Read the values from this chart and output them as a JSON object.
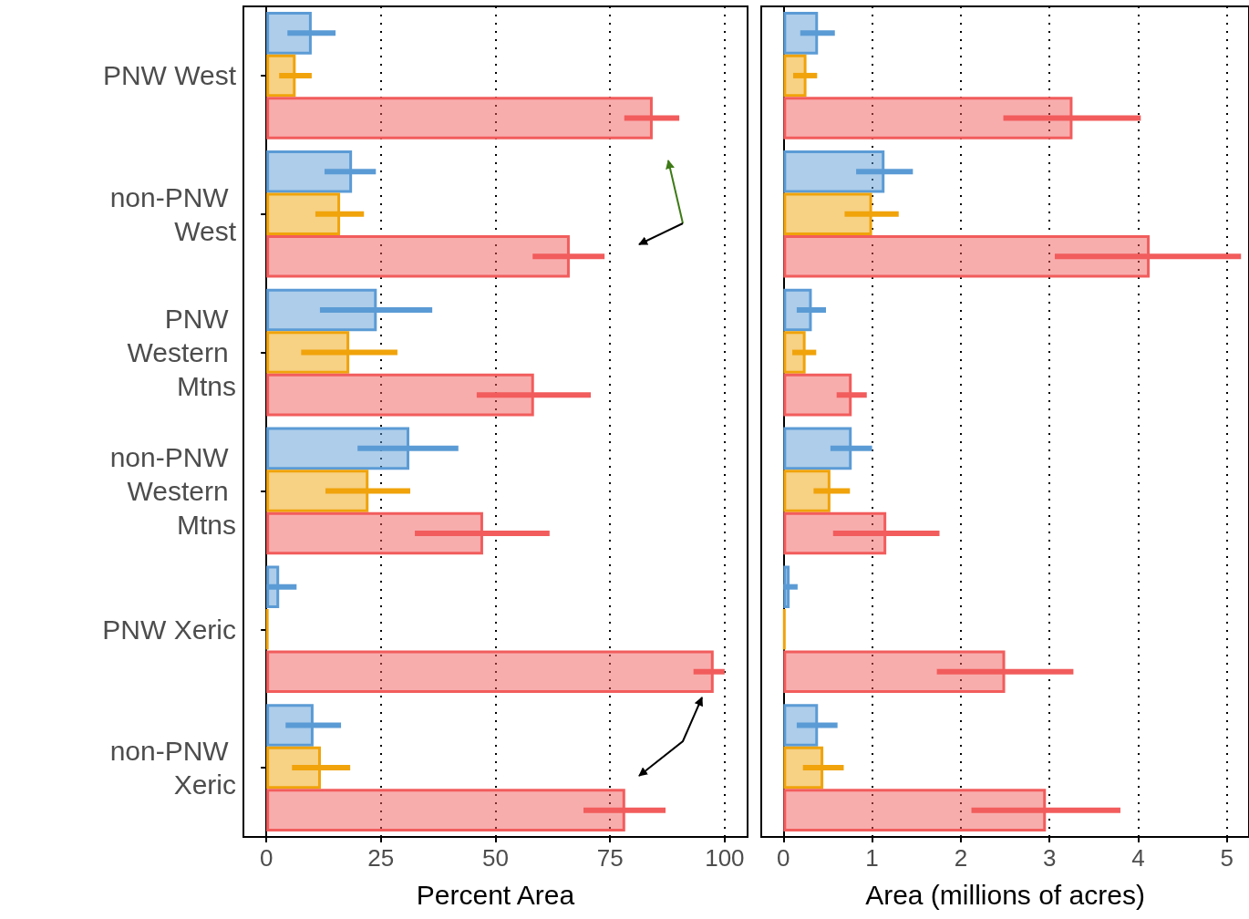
{
  "chart_data": [
    {
      "type": "bar",
      "orientation": "horizontal",
      "xlabel": "Percent Area",
      "categories": [
        "PNW West",
        "non-PNW West",
        "PNW Western Mtns",
        "non-PNW Western Mtns",
        "PNW Xeric",
        "non-PNW Xeric"
      ],
      "series": [
        {
          "color": "#5b9bd5",
          "values": [
            9.9,
            18.7,
            24.1,
            31.2,
            2.8,
            10.3
          ],
          "errors": [
            [
              4.6,
              15.1
            ],
            [
              12.7,
              23.9
            ],
            [
              11.7,
              36.2
            ],
            [
              19.9,
              41.9
            ],
            [
              0,
              6.6
            ],
            [
              4.2,
              16.3
            ]
          ]
        },
        {
          "color": "#f0a30a",
          "values": [
            6.4,
            16.1,
            18.1,
            22.3,
            0.4,
            11.9
          ],
          "errors": [
            [
              2.8,
              9.9
            ],
            [
              10.7,
              21.3
            ],
            [
              7.6,
              28.6
            ],
            [
              12.9,
              31.4
            ],
            null,
            [
              5.6,
              18.3
            ]
          ]
        },
        {
          "color": "#f25c5c",
          "values": [
            84.3,
            66.2,
            58.4,
            47.3,
            97.6,
            78.3
          ],
          "errors": [
            [
              78.1,
              90.1
            ],
            [
              58.1,
              73.8
            ],
            [
              45.9,
              70.8
            ],
            [
              32.4,
              61.8
            ],
            [
              93.2,
              100
            ],
            [
              69.2,
              87.1
            ]
          ]
        }
      ],
      "xlim": [
        -5,
        105
      ],
      "xticks": [
        0,
        25,
        50,
        75,
        100
      ],
      "grid": "x"
    },
    {
      "type": "bar",
      "orientation": "horizontal",
      "xlabel": "Area (millions of acres)",
      "categories": [
        "PNW West",
        "non-PNW West",
        "PNW Western Mtns",
        "non-PNW Western Mtns",
        "PNW Xeric",
        "non-PNW Xeric"
      ],
      "series": [
        {
          "color": "#5b9bd5",
          "values": [
            0.39,
            1.14,
            0.32,
            0.77,
            0.07,
            0.39
          ],
          "errors": [
            [
              0.19,
              0.58
            ],
            [
              0.82,
              1.46
            ],
            [
              0.15,
              0.48
            ],
            [
              0.53,
              1.0
            ],
            [
              0,
              0.16
            ],
            [
              0.15,
              0.61
            ]
          ]
        },
        {
          "color": "#f0a30a",
          "values": [
            0.26,
            1.0,
            0.25,
            0.53,
            0.02,
            0.45
          ],
          "errors": [
            [
              0.11,
              0.38
            ],
            [
              0.69,
              1.3
            ],
            [
              0.1,
              0.37
            ],
            [
              0.34,
              0.75
            ],
            null,
            [
              0.22,
              0.68
            ]
          ]
        },
        {
          "color": "#f25c5c",
          "values": [
            3.26,
            4.13,
            0.77,
            1.16,
            2.5,
            2.96
          ],
          "errors": [
            [
              2.48,
              4.03
            ],
            [
              3.06,
              5.16
            ],
            [
              0.6,
              0.94
            ],
            [
              0.56,
              1.76
            ],
            [
              1.73,
              3.27
            ],
            [
              2.12,
              3.8
            ]
          ]
        }
      ],
      "xlim": [
        -0.25,
        5.25
      ],
      "xticks": [
        0,
        1,
        2,
        3,
        4,
        5
      ],
      "grid": "x",
      "tick_labels": "x"
    }
  ]
}
